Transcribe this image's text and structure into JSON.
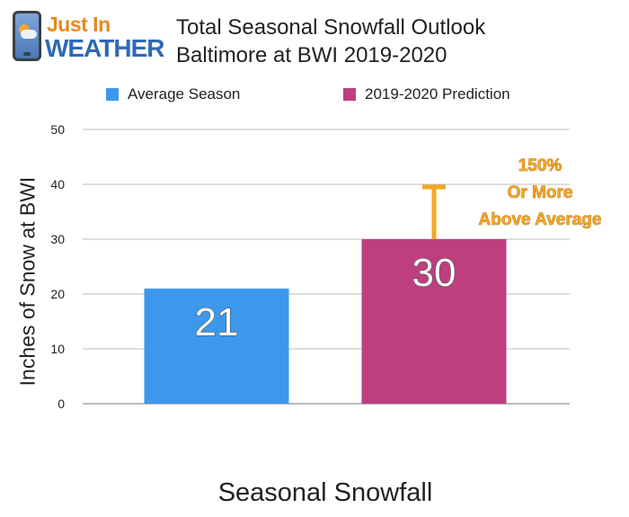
{
  "logo": {
    "line1": "Just In",
    "line2": "WEATHER"
  },
  "chart_data": {
    "type": "bar",
    "title": "Total Seasonal Snowfall Outlook",
    "subtitle": "Baltimore at BWI 2019-2020",
    "xlabel": "Seasonal Snowfall",
    "ylabel": "Inches of Snow at BWI",
    "ylim": [
      0,
      50
    ],
    "yticks": [
      "0",
      "10",
      "20",
      "30",
      "40",
      "50"
    ],
    "grid": true,
    "legend_position": "top",
    "series": [
      {
        "name": "Average Season",
        "values": [
          21
        ],
        "color": "#3b98ec",
        "data_label": "21"
      },
      {
        "name": "2019-2020 Prediction",
        "values": [
          30
        ],
        "color": "#bd3f7e",
        "data_label": "30"
      }
    ],
    "error_bar": {
      "series": "2019-2020 Prediction",
      "upper": 39.5,
      "color": "#f5a623"
    },
    "annotation": {
      "lines": [
        "150%",
        "Or More",
        "Above Average"
      ],
      "color": "#f5a623"
    }
  }
}
